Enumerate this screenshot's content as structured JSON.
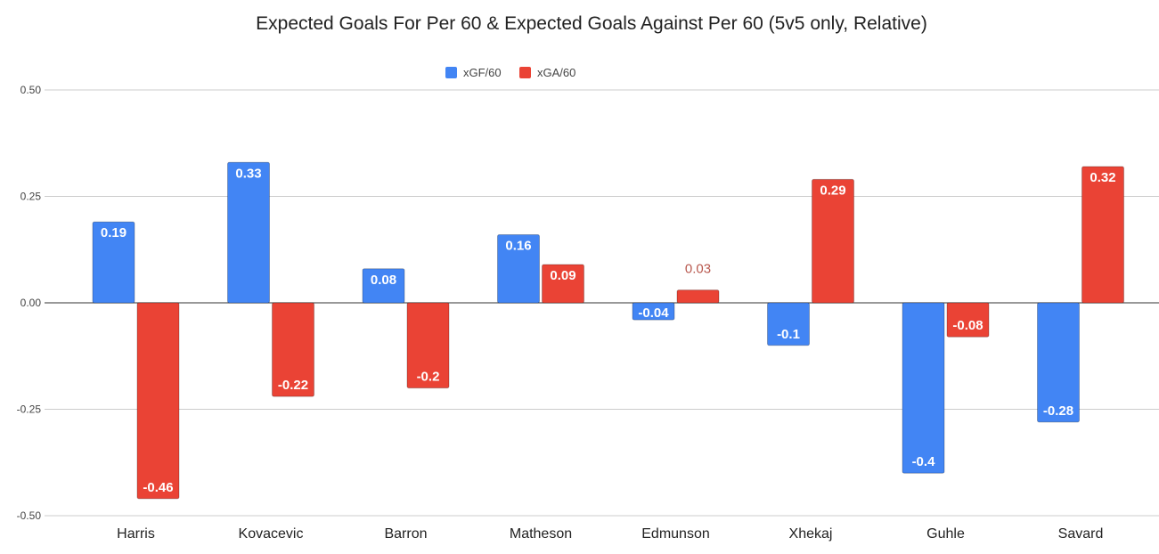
{
  "chart_data": {
    "type": "bar",
    "title": "Expected Goals For Per 60 & Expected Goals Against Per 60 (5v5 only, Relative)",
    "categories": [
      "Harris",
      "Kovacevic",
      "Barron",
      "Matheson",
      "Edmunson",
      "Xhekaj",
      "Guhle",
      "Savard"
    ],
    "series": [
      {
        "name": "xGF/60",
        "color": "#4285f4",
        "values": [
          0.19,
          0.33,
          0.08,
          0.16,
          -0.04,
          -0.1,
          -0.4,
          -0.28
        ],
        "labels": [
          "0.19",
          "0.33",
          "0.08",
          "0.16",
          "-0.04",
          "-0.1",
          "-0.4",
          "-0.28"
        ]
      },
      {
        "name": "xGA/60",
        "color": "#ea4335",
        "values": [
          -0.46,
          -0.22,
          -0.2,
          0.09,
          0.03,
          0.29,
          -0.08,
          0.32
        ],
        "labels": [
          "-0.46",
          "-0.22",
          "-0.2",
          "0.09",
          "0.03",
          "0.29",
          "-0.08",
          "0.32"
        ]
      }
    ],
    "ylim": [
      -0.5,
      0.5
    ],
    "yticks": [
      "0.50",
      "0.25",
      "0.00",
      "-0.25",
      "-0.50"
    ],
    "ytick_values": [
      0.5,
      0.25,
      0,
      -0.25,
      -0.5
    ],
    "xlabel": "",
    "ylabel": "",
    "grid": true,
    "legend": "top-center"
  }
}
